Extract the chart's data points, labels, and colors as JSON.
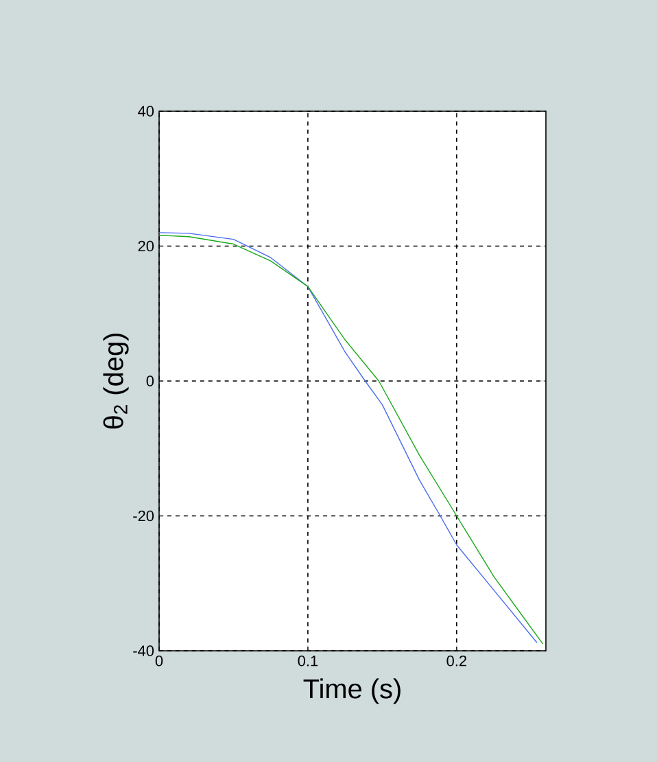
{
  "chart_data": {
    "type": "line",
    "xlabel": "Time (s)",
    "ylabel": "θ$_{2}$ (deg)",
    "xlim": [
      0,
      0.26
    ],
    "ylim": [
      -40,
      40
    ],
    "xticks": [
      0,
      0.1,
      0.2
    ],
    "yticks": [
      -40,
      -20,
      0,
      20,
      40
    ],
    "grid": true,
    "line_style": "solid",
    "marker": "none",
    "series": [
      {
        "color": "#4a6cf0",
        "x": [
          0,
          0.02,
          0.05,
          0.075,
          0.1,
          0.125,
          0.1385,
          0.15,
          0.175,
          0.189,
          0.2,
          0.225,
          0.254
        ],
        "values": [
          22,
          21.9,
          21,
          18.3,
          14,
          4.3,
          0,
          -3.5,
          -14.7,
          -20,
          -24.3,
          -31,
          -38.8
        ]
      },
      {
        "color": "#1aa81a",
        "x": [
          0,
          0.02,
          0.05,
          0.075,
          0.1,
          0.125,
          0.1477,
          0.175,
          0.2,
          0.225,
          0.258
        ],
        "values": [
          21.6,
          21.4,
          20.3,
          17.8,
          14,
          6.1,
          0,
          -11,
          -20,
          -29,
          -39
        ]
      }
    ]
  }
}
